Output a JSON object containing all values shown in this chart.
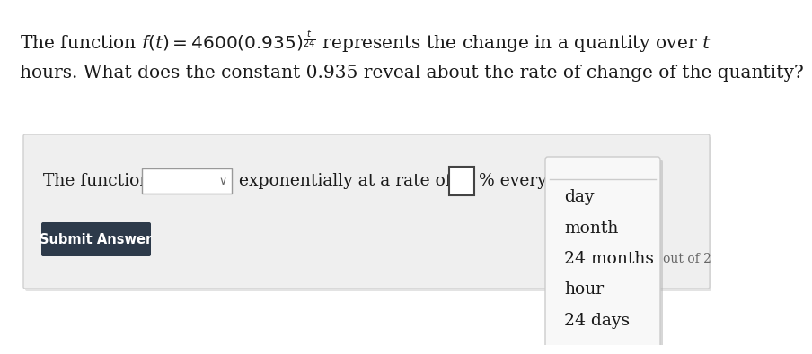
{
  "bg_color": "#ffffff",
  "panel_bg": "#efefef",
  "panel_border": "#d0d0d0",
  "title_line1": "The function $f(t) = 4600(0.935)^{\\frac{t}{24}}$ represents the change in a quantity over $t$",
  "title_line2": "hours. What does the constant 0.935 reveal about the rate of change of the quantity?",
  "sentence_start": "The function is",
  "sentence_mid": "exponentially at a rate of",
  "sentence_end": "% every",
  "dropdown1_border": "#999999",
  "input_box_border": "#444444",
  "submit_bg": "#2d3a4a",
  "submit_text": "Submit Answer",
  "submit_text_color": "#ffffff",
  "dropdown2_items": [
    "day",
    "month",
    "24 months",
    "hour",
    "24 days"
  ],
  "out_of_text": "out of 2",
  "checkmark": "✓",
  "font_size_title": 14.5,
  "font_size_body": 13.5,
  "font_size_menu": 13.5,
  "font_size_submit": 10.5,
  "font_size_outof": 10
}
